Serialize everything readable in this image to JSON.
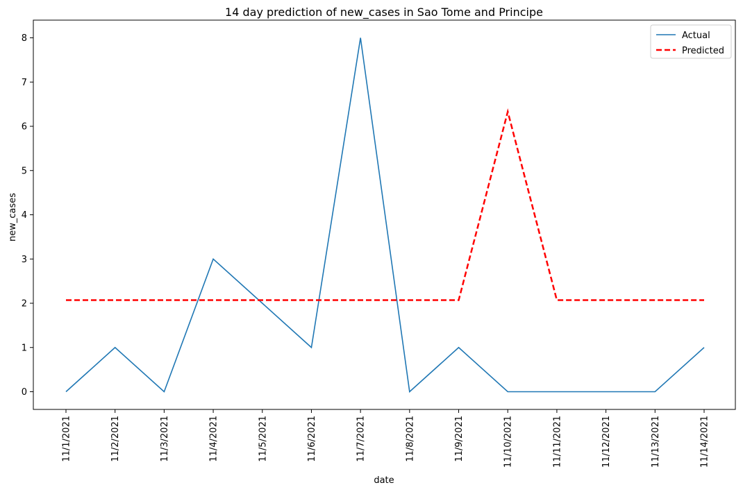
{
  "chart_data": {
    "type": "line",
    "title": "14 day prediction of new_cases in Sao Tome and Principe",
    "xlabel": "date",
    "ylabel": "new_cases",
    "categories": [
      "11/1/2021",
      "11/2/2021",
      "11/3/2021",
      "11/4/2021",
      "11/5/2021",
      "11/6/2021",
      "11/7/2021",
      "11/8/2021",
      "11/9/2021",
      "11/10/2021",
      "11/11/2021",
      "11/12/2021",
      "11/13/2021",
      "11/14/2021"
    ],
    "yticks": [
      0,
      1,
      2,
      3,
      4,
      5,
      6,
      7,
      8
    ],
    "ylim": [
      -0.4,
      8.4
    ],
    "grid": false,
    "legend_position": "top-right",
    "series": [
      {
        "name": "Actual",
        "color": "#1f77b4",
        "style": "solid",
        "values": [
          0,
          1,
          0,
          3,
          2,
          1,
          8,
          0,
          1,
          0,
          0,
          0,
          0,
          1
        ]
      },
      {
        "name": "Predicted",
        "color": "#ff0000",
        "style": "dashed",
        "values": [
          2.07,
          2.07,
          2.07,
          2.07,
          2.07,
          2.07,
          2.07,
          2.07,
          2.07,
          6.33,
          2.07,
          2.07,
          2.07,
          2.07
        ]
      }
    ]
  }
}
